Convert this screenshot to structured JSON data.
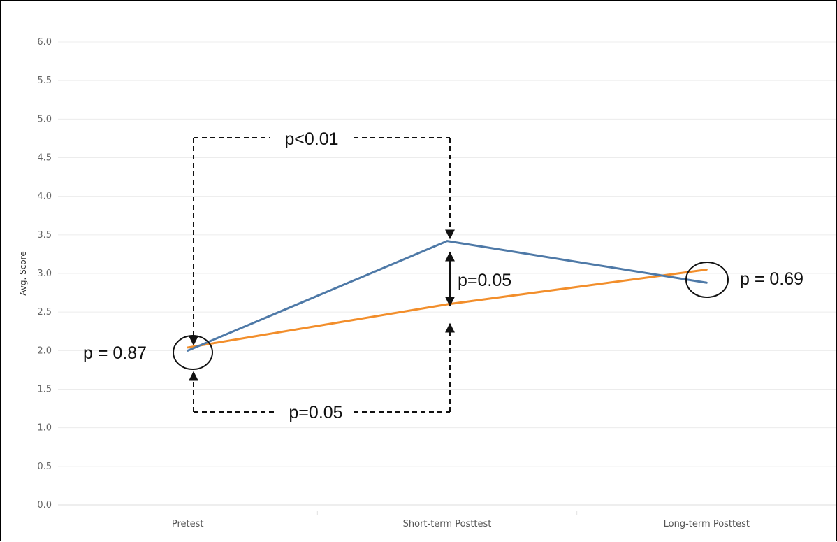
{
  "chart_data": {
    "type": "line",
    "title": "",
    "xlabel": "",
    "ylabel": "Avg. Score",
    "categories": [
      "Pretest",
      "Short-term Posttest",
      "Long-term Posttest"
    ],
    "ylim": [
      0,
      6
    ],
    "yticks": [
      "0.0",
      "0.5",
      "1.0",
      "1.5",
      "2.0",
      "2.5",
      "3.0",
      "3.5",
      "4.0",
      "4.5",
      "5.0",
      "5.5",
      "6.0"
    ],
    "grid": true,
    "series": [
      {
        "values": [
          2.0,
          3.42,
          2.88
        ],
        "color": "#4e79a7"
      },
      {
        "values": [
          2.04,
          2.6,
          3.05
        ],
        "color": "#f28e2b"
      }
    ],
    "annotations": {
      "pre_vs_short": "p<0.01",
      "short_between_groups": "p=0.05",
      "pre_vs_short_lower": "p=0.05",
      "pre_between_groups": "p = 0.87",
      "long_between_groups": "p = 0.69"
    }
  }
}
